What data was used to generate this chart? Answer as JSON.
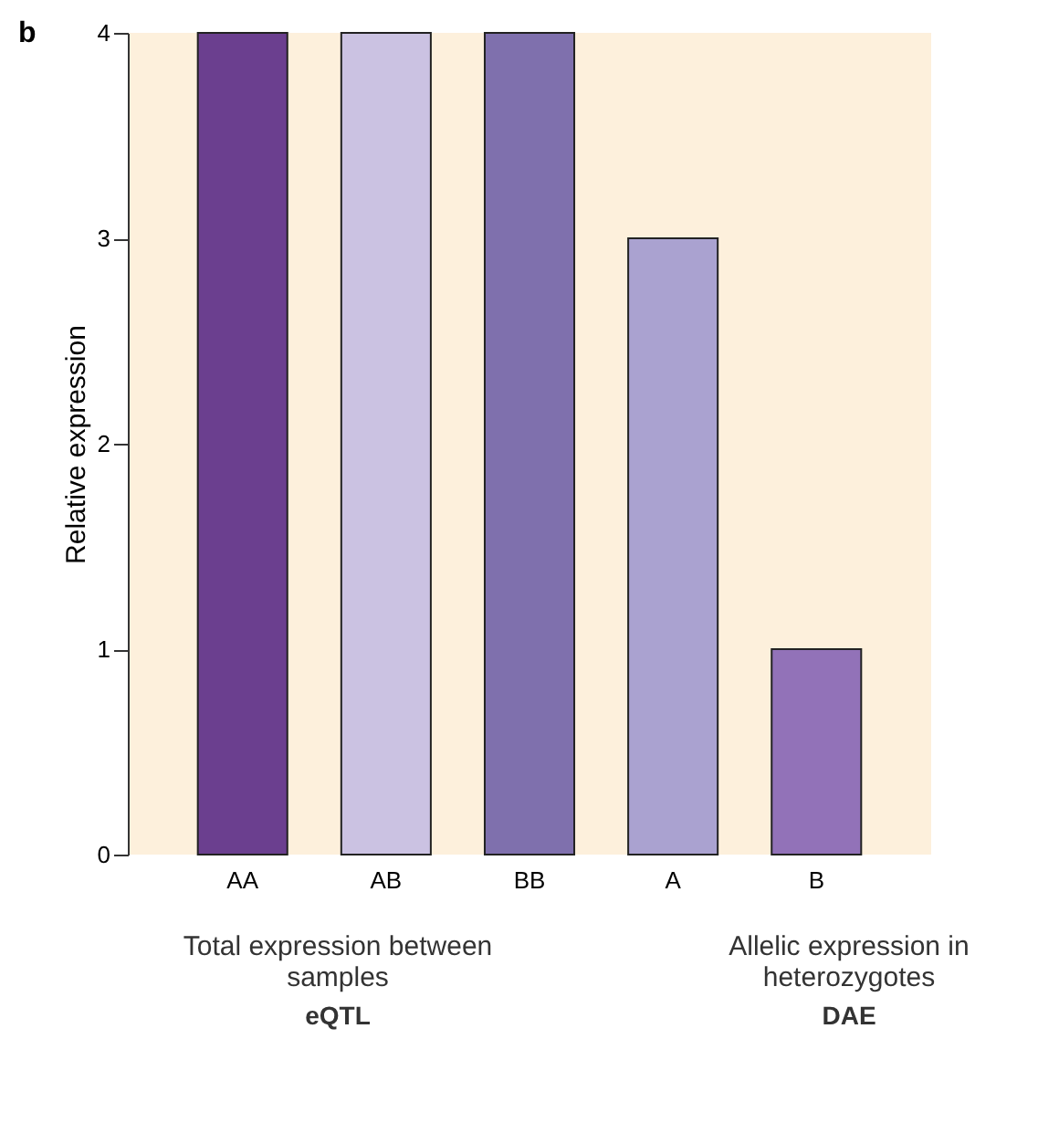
{
  "chart_data": {
    "type": "bar",
    "title": "b",
    "ylabel": "Relative expression",
    "categories": [
      "AA",
      "AB",
      "BB",
      "A",
      "B"
    ],
    "values": [
      4,
      4,
      4,
      3,
      1
    ],
    "colors": [
      "#6b3f8f",
      "#cbc2e2",
      "#7f70ad",
      "#aaa2d0",
      "#9272b8"
    ],
    "ylim": [
      0,
      4
    ],
    "yticks": [
      0,
      1,
      2,
      3,
      4
    ],
    "grid": false,
    "legend": false,
    "annotations": [
      "Total expression between samples",
      "eQTL",
      "Allelic expression in heterozygotes",
      "DAE"
    ]
  }
}
